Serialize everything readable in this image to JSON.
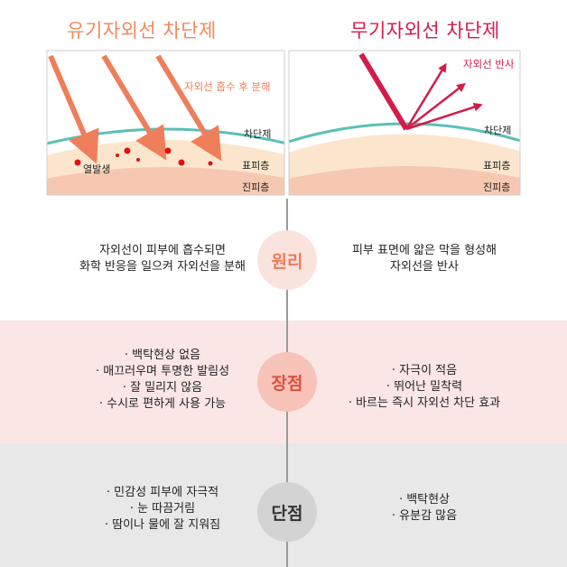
{
  "titles": {
    "left": "유기자외선 차단제",
    "right": "무기자외선 차단제"
  },
  "figure_left": {
    "annotation": "자외선 흡수 후 분해",
    "label_filter": "차단제",
    "label_heat": "열발생",
    "label_epidermis": "표피층",
    "label_dermis": "진피층"
  },
  "figure_right": {
    "annotation": "자외선 반사",
    "label_filter": "차단제",
    "label_epidermis": "표피층",
    "label_dermis": "진피층"
  },
  "sections": {
    "principle": {
      "label": "원리",
      "left": [
        "자외선이 피부에 흡수되면",
        "화학 반응을 일으켜 자외선을 분해"
      ],
      "right": [
        "피부 표면에 얇은 막을 형성해",
        "자외선을 반사"
      ]
    },
    "advantage": {
      "label": "장점",
      "left": [
        "· 백탁현상 없음",
        "· 매끄러우며 투명한 발림성",
        "· 잘 밀리지 않음",
        "· 수시로 편하게 사용 가능"
      ],
      "right": [
        "· 자극이 적음",
        "· 뛰어난 밀착력",
        "· 바르는 즉시 자외선 차단 효과"
      ]
    },
    "disadvantage": {
      "label": "단점",
      "left": [
        "· 민감성 피부에 자극적",
        "· 눈 따끔거림",
        "· 땀이나 물에 잘 지워짐"
      ],
      "right": [
        "· 백탁현상",
        "· 유분감 많음"
      ]
    }
  },
  "colors": {
    "organic_accent": "#f08a5d",
    "inorganic_accent": "#d41c4a",
    "filter_line": "#5cbfb8",
    "heat_dot": "#e01010",
    "epidermis": "#fbe6cd",
    "dermis": "#f6c8b2"
  }
}
